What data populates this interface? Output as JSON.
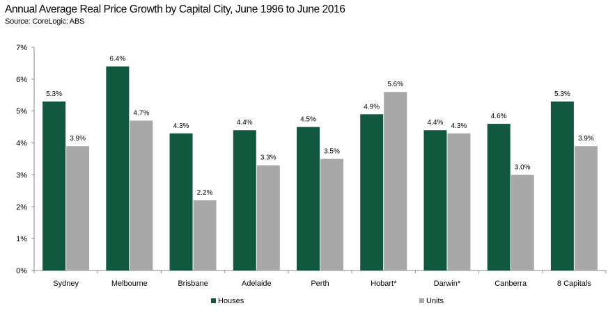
{
  "title": "Annual Average Real Price Growth by Capital City, June 1996 to June 2016",
  "source": "Source: CoreLogic; ABS",
  "colors": {
    "houses": "#12583f",
    "units": "#a8a8a8"
  },
  "chart_data": {
    "type": "bar",
    "title": "Annual Average Real Price Growth by Capital City, June 1996 to June 2016",
    "xlabel": "",
    "ylabel": "",
    "ylim": [
      0,
      7
    ],
    "yticks": [
      "0%",
      "1%",
      "2%",
      "3%",
      "4%",
      "5%",
      "6%",
      "7%"
    ],
    "grid": false,
    "legend": "bottom-center",
    "categories": [
      "Sydney",
      "Melbourne",
      "Brisbane",
      "Adelaide",
      "Perth",
      "Hobart*",
      "Darwin*",
      "Canberra",
      "8 Capitals"
    ],
    "series": [
      {
        "name": "Houses",
        "values": [
          5.3,
          6.4,
          4.3,
          4.4,
          4.5,
          4.9,
          4.4,
          4.6,
          5.3
        ],
        "labels": [
          "5.3%",
          "6.4%",
          "4.3%",
          "4.4%",
          "4.5%",
          "4.9%",
          "4.4%",
          "4.6%",
          "5.3%"
        ]
      },
      {
        "name": "Units",
        "values": [
          3.9,
          4.7,
          2.2,
          3.3,
          3.5,
          5.6,
          4.3,
          3.0,
          3.9
        ],
        "labels": [
          "3.9%",
          "4.7%",
          "2.2%",
          "3.3%",
          "3.5%",
          "5.6%",
          "4.3%",
          "3.0%",
          "3.9%"
        ]
      }
    ]
  }
}
